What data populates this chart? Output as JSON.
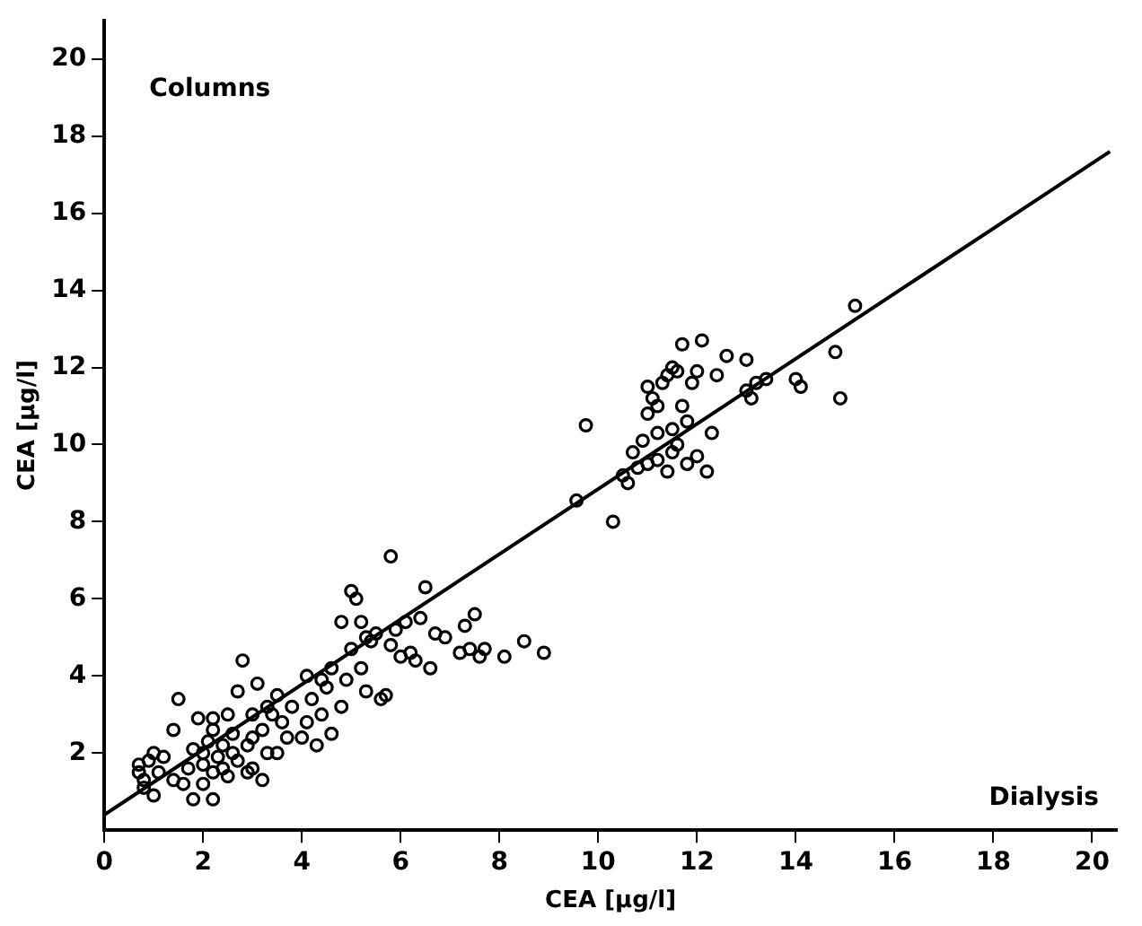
{
  "chart_data": {
    "type": "scatter",
    "xlabel": "CEA [µg/l]",
    "ylabel": "CEA [µg/l]",
    "annotations": [
      "Columns",
      "Dialysis"
    ],
    "xlim": [
      0,
      20.5
    ],
    "ylim": [
      0,
      21
    ],
    "xticks": [
      0,
      2,
      4,
      6,
      8,
      10,
      12,
      14,
      16,
      18,
      20
    ],
    "yticks": [
      2,
      4,
      6,
      8,
      10,
      12,
      14,
      16,
      18,
      20
    ],
    "grid": false,
    "legend": false,
    "series": [
      {
        "type": "scatter",
        "marker": "circle",
        "color": "#000000",
        "x": [
          0.7,
          0.7,
          0.8,
          0.9,
          1.0,
          0.8,
          1.1,
          1.2,
          1.0,
          1.5,
          1.4,
          1.6,
          1.8,
          1.8,
          1.9,
          2.0,
          2.0,
          2.1,
          2.2,
          2.2,
          2.3,
          2.4,
          2.5,
          2.5,
          2.6,
          2.7,
          2.8,
          2.7,
          2.9,
          3.0,
          3.0,
          3.1,
          3.2,
          3.3,
          3.4,
          3.5,
          3.6,
          3.7,
          2.2,
          2.0,
          2.4,
          2.6,
          3.0,
          3.2,
          3.3,
          2.2,
          1.7,
          1.4,
          2.9,
          3.5,
          3.8,
          4.0,
          4.1,
          4.2,
          4.3,
          4.4,
          4.5,
          4.6,
          4.6,
          4.8,
          4.9,
          5.0,
          5.0,
          5.1,
          5.2,
          5.2,
          5.3,
          5.4,
          5.5,
          5.6,
          5.8,
          5.8,
          5.9,
          6.1,
          6.2,
          6.3,
          6.4,
          6.5,
          6.6,
          6.7,
          4.8,
          4.4,
          5.7,
          6.0,
          6.9,
          5.3,
          4.1,
          7.2,
          7.4,
          7.5,
          7.6,
          7.7,
          8.1,
          8.5,
          8.9,
          7.3,
          10.5,
          10.6,
          10.8,
          11.0,
          11.2,
          10.7,
          11.0,
          11.1,
          11.2,
          11.3,
          11.4,
          11.5,
          11.6,
          11.7,
          11.5,
          11.6,
          11.7,
          11.8,
          11.5,
          11.4,
          11.8,
          11.9,
          12.1,
          12.0,
          12.2,
          12.3,
          12.4,
          12.6,
          11.2,
          11.0,
          13.0,
          13.0,
          13.2,
          13.4,
          13.1,
          14.0,
          14.1,
          14.8,
          14.9,
          15.2,
          9.75,
          9.56,
          10.3,
          10.9,
          12.0
        ],
        "values": [
          1.7,
          1.5,
          1.3,
          1.8,
          2.0,
          1.1,
          1.5,
          1.9,
          0.9,
          3.4,
          2.6,
          1.2,
          0.8,
          2.1,
          2.9,
          2.0,
          1.7,
          2.3,
          1.5,
          2.6,
          1.9,
          2.2,
          3.0,
          1.4,
          2.5,
          3.6,
          4.4,
          1.8,
          2.2,
          3.0,
          1.6,
          3.8,
          2.6,
          2.0,
          3.0,
          3.5,
          2.8,
          2.4,
          0.8,
          1.2,
          1.6,
          2.0,
          2.4,
          1.3,
          3.2,
          2.9,
          1.6,
          1.3,
          1.5,
          2.0,
          3.2,
          2.4,
          2.8,
          3.4,
          2.2,
          3.0,
          3.7,
          4.2,
          2.5,
          3.2,
          3.9,
          4.7,
          6.2,
          6.0,
          5.4,
          4.2,
          3.6,
          4.9,
          5.1,
          3.4,
          7.1,
          4.8,
          5.2,
          5.4,
          4.6,
          4.4,
          5.5,
          6.3,
          4.2,
          5.1,
          5.4,
          3.9,
          3.5,
          4.5,
          5.0,
          5.0,
          4.0,
          4.6,
          4.7,
          5.6,
          4.5,
          4.7,
          4.5,
          4.9,
          4.6,
          5.3,
          9.2,
          9.0,
          9.4,
          9.5,
          9.6,
          9.8,
          10.8,
          11.2,
          11.0,
          11.6,
          11.8,
          12.0,
          11.9,
          12.6,
          10.4,
          10.0,
          11.0,
          10.6,
          9.8,
          9.3,
          9.5,
          11.6,
          12.7,
          9.7,
          9.3,
          10.3,
          11.8,
          12.3,
          10.3,
          11.5,
          12.2,
          11.4,
          11.6,
          11.7,
          11.2,
          11.7,
          11.5,
          12.4,
          11.2,
          13.6,
          10.5,
          8.55,
          8.0,
          10.1,
          11.9
        ]
      },
      {
        "type": "line",
        "marker": "none",
        "color": "#000000",
        "x": [
          0,
          20.36
        ],
        "values": [
          0.4,
          17.6
        ]
      }
    ]
  }
}
